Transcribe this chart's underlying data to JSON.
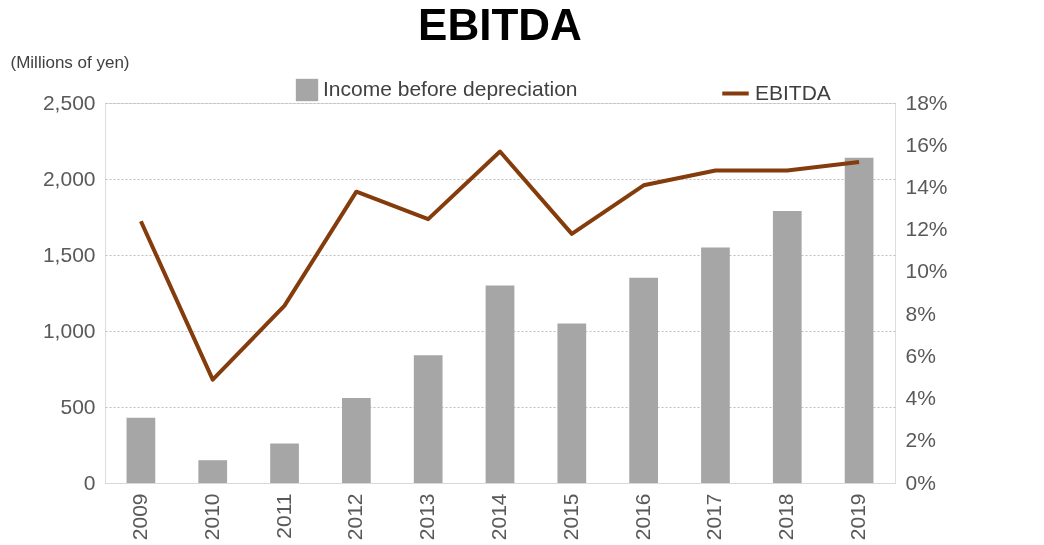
{
  "chart_data": {
    "type": "bar",
    "title": "EBITDA",
    "ylabel": "(Millions of yen)",
    "categories": [
      "2009",
      "2010",
      "2011",
      "2012",
      "2013",
      "2014",
      "2015",
      "2016",
      "2017",
      "2018",
      "2019"
    ],
    "series": [
      {
        "name": "Income before depreciation",
        "color": "#a6a6a6",
        "values": [
          430,
          150,
          260,
          560,
          840,
          1300,
          1050,
          1350,
          1550,
          1790,
          2140
        ]
      },
      {
        "name": "EBITDA",
        "type": "line",
        "axis": "y2",
        "color": "#843c0c",
        "values": [
          12.4,
          4.9,
          8.4,
          13.8,
          12.5,
          15.7,
          11.8,
          14.1,
          14.8,
          14.8,
          15.2
        ]
      }
    ],
    "ylim": [
      0,
      2500
    ],
    "yticks": [
      0,
      500,
      {
        "value": 1000,
        "label": "1,000"
      },
      {
        "value": 1500,
        "label": "1,500"
      },
      {
        "value": 2000,
        "label": "2,000"
      },
      {
        "value": 2500,
        "label": "2,500"
      }
    ],
    "y2lim": [
      0,
      18
    ],
    "y2ticks": [
      {
        "value": 0,
        "label": "0%"
      },
      {
        "value": 2,
        "label": "2%"
      },
      {
        "value": 4,
        "label": "4%"
      },
      {
        "value": 6,
        "label": "6%"
      },
      {
        "value": 8,
        "label": "8%"
      },
      {
        "value": 10,
        "label": "10%"
      },
      {
        "value": 12,
        "label": "12%"
      },
      {
        "value": 14,
        "label": "14%"
      },
      {
        "value": 16,
        "label": "16%"
      },
      {
        "value": 18,
        "label": "18%"
      }
    ],
    "grid": "y",
    "legend": "top",
    "marker": "none",
    "line_style": "solid"
  }
}
